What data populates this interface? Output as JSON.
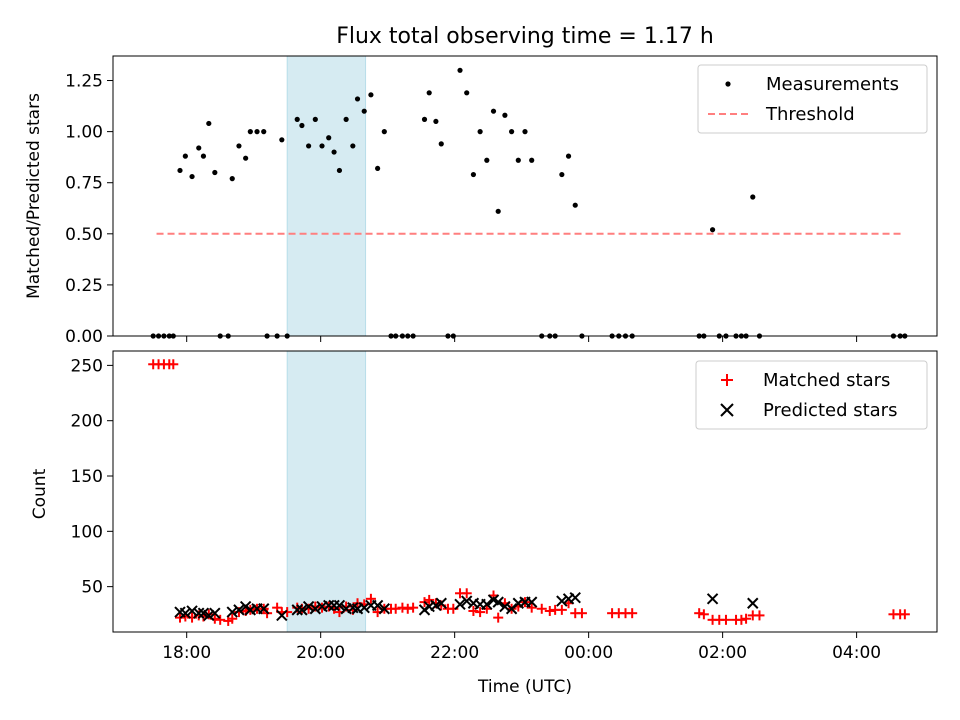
{
  "chart_data": [
    {
      "type": "scatter",
      "title": "Flux total observing time = 1.17 h",
      "xlabel": "",
      "ylabel": "Matched/Predicted stars",
      "xlim": [
        16.9,
        29.2
      ],
      "ylim": [
        0,
        1.37
      ],
      "yticks": [
        0.0,
        0.25,
        0.5,
        0.75,
        1.0,
        1.25
      ],
      "ytick_labels": [
        "0.00",
        "0.25",
        "0.50",
        "0.75",
        "1.00",
        "1.25"
      ],
      "shaded_span": [
        19.5,
        20.67
      ],
      "series": [
        {
          "name": "Measurements",
          "marker": "dot",
          "color": "#000000",
          "points": [
            [
              17.5,
              0
            ],
            [
              17.58,
              0
            ],
            [
              17.66,
              0
            ],
            [
              17.74,
              0
            ],
            [
              17.8,
              0
            ],
            [
              17.9,
              0.81
            ],
            [
              17.98,
              0.88
            ],
            [
              18.08,
              0.78
            ],
            [
              18.18,
              0.92
            ],
            [
              18.25,
              0.88
            ],
            [
              18.33,
              1.04
            ],
            [
              18.42,
              0.8
            ],
            [
              18.5,
              0
            ],
            [
              18.62,
              0
            ],
            [
              18.68,
              0.77
            ],
            [
              18.78,
              0.93
            ],
            [
              18.88,
              0.87
            ],
            [
              18.95,
              1.0
            ],
            [
              19.05,
              1.0
            ],
            [
              19.15,
              1.0
            ],
            [
              19.2,
              0
            ],
            [
              19.35,
              0
            ],
            [
              19.42,
              0.96
            ],
            [
              19.5,
              0
            ],
            [
              19.65,
              1.06
            ],
            [
              19.72,
              1.03
            ],
            [
              19.82,
              0.93
            ],
            [
              19.92,
              1.06
            ],
            [
              20.02,
              0.93
            ],
            [
              20.12,
              0.97
            ],
            [
              20.2,
              0.9
            ],
            [
              20.28,
              0.81
            ],
            [
              20.38,
              1.06
            ],
            [
              20.48,
              0.93
            ],
            [
              20.55,
              1.16
            ],
            [
              20.65,
              1.1
            ],
            [
              20.75,
              1.18
            ],
            [
              20.85,
              0.82
            ],
            [
              20.95,
              1.0
            ],
            [
              21.05,
              0
            ],
            [
              21.12,
              0
            ],
            [
              21.22,
              0
            ],
            [
              21.3,
              0
            ],
            [
              21.38,
              0
            ],
            [
              21.55,
              1.06
            ],
            [
              21.62,
              1.19
            ],
            [
              21.72,
              1.05
            ],
            [
              21.8,
              0.94
            ],
            [
              21.9,
              0
            ],
            [
              21.98,
              0
            ],
            [
              22.08,
              1.3
            ],
            [
              22.18,
              1.19
            ],
            [
              22.28,
              0.79
            ],
            [
              22.38,
              1.0
            ],
            [
              22.48,
              0.86
            ],
            [
              22.58,
              1.1
            ],
            [
              22.65,
              0.61
            ],
            [
              22.75,
              1.08
            ],
            [
              22.85,
              1.0
            ],
            [
              22.95,
              0.86
            ],
            [
              23.05,
              1.0
            ],
            [
              23.15,
              0.86
            ],
            [
              23.3,
              0
            ],
            [
              23.42,
              0
            ],
            [
              23.5,
              0
            ],
            [
              23.6,
              0.79
            ],
            [
              23.7,
              0.88
            ],
            [
              23.8,
              0.64
            ],
            [
              23.9,
              0
            ],
            [
              24.35,
              0
            ],
            [
              24.45,
              0
            ],
            [
              24.55,
              0
            ],
            [
              24.65,
              0
            ],
            [
              25.65,
              0
            ],
            [
              25.72,
              0
            ],
            [
              25.85,
              0.52
            ],
            [
              25.95,
              0
            ],
            [
              26.05,
              0
            ],
            [
              26.2,
              0
            ],
            [
              26.28,
              0
            ],
            [
              26.35,
              0
            ],
            [
              26.45,
              0.68
            ],
            [
              26.55,
              0
            ],
            [
              28.55,
              0
            ],
            [
              28.65,
              0
            ],
            [
              28.72,
              0
            ]
          ]
        },
        {
          "name": "Threshold",
          "marker": "dashed-line",
          "color": "#ff7f7f",
          "x": [
            17.55,
            28.7
          ],
          "y": [
            0.5,
            0.5
          ]
        }
      ],
      "legend": [
        "Measurements",
        "Threshold"
      ],
      "legend_position": "top-right"
    },
    {
      "type": "scatter",
      "title": "",
      "xlabel": "Time (UTC)",
      "ylabel": "Count",
      "xlim": [
        16.9,
        29.2
      ],
      "ylim": [
        9,
        263
      ],
      "yticks": [
        50,
        100,
        150,
        200,
        250
      ],
      "ytick_labels": [
        "50",
        "100",
        "150",
        "200",
        "250"
      ],
      "xticks": [
        18,
        20,
        22,
        24,
        26,
        28
      ],
      "xtick_labels": [
        "18:00",
        "20:00",
        "22:00",
        "00:00",
        "02:00",
        "04:00"
      ],
      "shaded_span": [
        19.5,
        20.67
      ],
      "series": [
        {
          "name": "Matched stars",
          "marker": "plus",
          "color": "#ff0000",
          "points": [
            [
              17.5,
              251
            ],
            [
              17.58,
              251
            ],
            [
              17.66,
              251
            ],
            [
              17.74,
              251
            ],
            [
              17.8,
              251
            ],
            [
              17.9,
              22
            ],
            [
              17.98,
              23
            ],
            [
              18.08,
              22
            ],
            [
              18.18,
              24
            ],
            [
              18.25,
              23
            ],
            [
              18.33,
              25
            ],
            [
              18.42,
              21
            ],
            [
              18.5,
              20
            ],
            [
              18.62,
              19
            ],
            [
              18.68,
              21
            ],
            [
              18.78,
              27
            ],
            [
              18.88,
              28
            ],
            [
              18.95,
              29
            ],
            [
              19.05,
              30
            ],
            [
              19.15,
              30
            ],
            [
              19.2,
              26
            ],
            [
              19.35,
              31
            ],
            [
              19.42,
              27
            ],
            [
              19.5,
              27
            ],
            [
              19.65,
              31
            ],
            [
              19.72,
              30
            ],
            [
              19.82,
              30
            ],
            [
              19.92,
              32
            ],
            [
              20.02,
              31
            ],
            [
              20.12,
              32
            ],
            [
              20.2,
              30
            ],
            [
              20.28,
              27
            ],
            [
              20.38,
              32
            ],
            [
              20.48,
              29
            ],
            [
              20.55,
              35
            ],
            [
              20.65,
              34
            ],
            [
              20.75,
              39
            ],
            [
              20.85,
              27
            ],
            [
              20.95,
              30
            ],
            [
              21.05,
              30
            ],
            [
              21.12,
              30
            ],
            [
              21.22,
              31
            ],
            [
              21.3,
              30
            ],
            [
              21.38,
              31
            ],
            [
              21.55,
              36
            ],
            [
              21.62,
              38
            ],
            [
              21.72,
              35
            ],
            [
              21.8,
              33
            ],
            [
              21.9,
              30
            ],
            [
              21.98,
              30
            ],
            [
              22.08,
              44
            ],
            [
              22.18,
              44
            ],
            [
              22.28,
              28
            ],
            [
              22.38,
              27
            ],
            [
              22.48,
              30
            ],
            [
              22.58,
              42
            ],
            [
              22.65,
              22
            ],
            [
              22.75,
              35
            ],
            [
              22.85,
              30
            ],
            [
              22.95,
              32
            ],
            [
              23.05,
              36
            ],
            [
              23.15,
              31
            ],
            [
              23.3,
              30
            ],
            [
              23.42,
              28
            ],
            [
              23.5,
              29
            ],
            [
              23.6,
              29
            ],
            [
              23.7,
              35
            ],
            [
              23.8,
              26
            ],
            [
              23.9,
              26
            ],
            [
              24.35,
              26
            ],
            [
              24.45,
              26
            ],
            [
              24.55,
              26
            ],
            [
              24.65,
              26
            ],
            [
              25.65,
              26
            ],
            [
              25.72,
              25
            ],
            [
              25.85,
              20
            ],
            [
              25.95,
              20
            ],
            [
              26.05,
              20
            ],
            [
              26.2,
              20
            ],
            [
              26.28,
              20
            ],
            [
              26.35,
              21
            ],
            [
              26.45,
              24
            ],
            [
              26.55,
              24
            ],
            [
              28.55,
              25
            ],
            [
              28.65,
              25
            ],
            [
              28.72,
              25
            ]
          ]
        },
        {
          "name": "Predicted stars",
          "marker": "x",
          "color": "#000000",
          "points": [
            [
              17.9,
              27
            ],
            [
              17.98,
              26
            ],
            [
              18.08,
              28
            ],
            [
              18.18,
              26
            ],
            [
              18.25,
              26
            ],
            [
              18.33,
              24
            ],
            [
              18.42,
              26
            ],
            [
              18.68,
              27
            ],
            [
              18.78,
              29
            ],
            [
              18.88,
              32
            ],
            [
              18.95,
              29
            ],
            [
              19.05,
              30
            ],
            [
              19.15,
              30
            ],
            [
              19.42,
              24
            ],
            [
              19.65,
              29
            ],
            [
              19.72,
              29
            ],
            [
              19.82,
              32
            ],
            [
              19.92,
              30
            ],
            [
              20.02,
              32
            ],
            [
              20.12,
              33
            ],
            [
              20.2,
              33
            ],
            [
              20.28,
              33
            ],
            [
              20.38,
              30
            ],
            [
              20.48,
              31
            ],
            [
              20.55,
              30
            ],
            [
              20.65,
              31
            ],
            [
              20.75,
              33
            ],
            [
              20.85,
              33
            ],
            [
              20.95,
              30
            ],
            [
              21.55,
              29
            ],
            [
              21.62,
              32
            ],
            [
              21.72,
              33
            ],
            [
              21.8,
              35
            ],
            [
              22.08,
              34
            ],
            [
              22.18,
              37
            ],
            [
              22.28,
              35
            ],
            [
              22.38,
              34
            ],
            [
              22.48,
              34
            ],
            [
              22.58,
              38
            ],
            [
              22.65,
              36
            ],
            [
              22.75,
              32
            ],
            [
              22.85,
              30
            ],
            [
              22.95,
              35
            ],
            [
              23.05,
              36
            ],
            [
              23.15,
              36
            ],
            [
              23.6,
              37
            ],
            [
              23.7,
              39
            ],
            [
              23.8,
              40
            ],
            [
              25.85,
              39
            ],
            [
              26.45,
              35
            ]
          ]
        }
      ],
      "legend": [
        "Matched stars",
        "Predicted stars"
      ],
      "legend_position": "top-right"
    }
  ]
}
